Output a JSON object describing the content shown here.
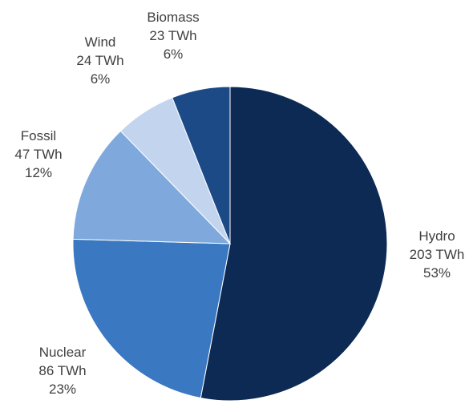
{
  "chart_data": {
    "type": "pie",
    "title": "",
    "unit": "TWh",
    "slices": [
      {
        "name": "Hydro",
        "value": 203,
        "value_label": "203 TWh",
        "percent_label": "53%",
        "color": "#0d2a55"
      },
      {
        "name": "Nuclear",
        "value": 86,
        "value_label": "86 TWh",
        "percent_label": "23%",
        "color": "#3a78c2"
      },
      {
        "name": "Fossil",
        "value": 47,
        "value_label": "47 TWh",
        "percent_label": "12%",
        "color": "#7fa9dc"
      },
      {
        "name": "Wind",
        "value": 24,
        "value_label": "24 TWh",
        "percent_label": "6%",
        "color": "#c3d5ee"
      },
      {
        "name": "Biomass",
        "value": 23,
        "value_label": "23 TWh",
        "percent_label": "6%",
        "color": "#1c4a86"
      }
    ]
  }
}
